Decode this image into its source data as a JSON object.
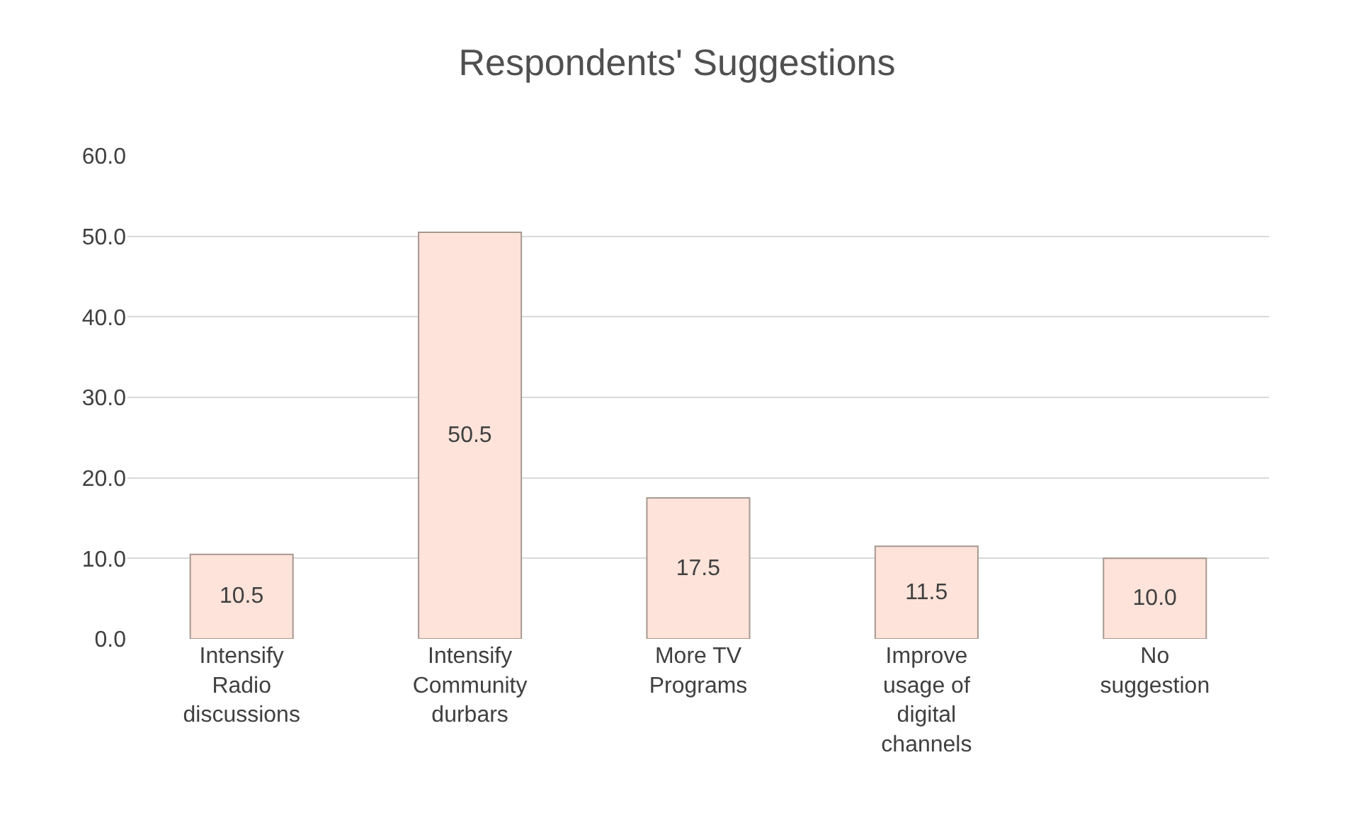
{
  "chart_data": {
    "type": "bar",
    "title": "Respondents' Suggestions",
    "categories": [
      "Intensify Radio discussions",
      "Intensify Community durbars",
      "More TV Programs",
      "Improve usage of digital channels",
      "No suggestion"
    ],
    "values": [
      10.5,
      50.5,
      17.5,
      11.5,
      10.0
    ],
    "value_labels": [
      "10.5",
      "50.5",
      "17.5",
      "11.5",
      "10.0"
    ],
    "color": "#fde3d9",
    "ylim": [
      0,
      60
    ],
    "yticks": [
      {
        "value": 0,
        "label": "0.0"
      },
      {
        "value": 10,
        "label": "10.0"
      },
      {
        "value": 20,
        "label": "20.0"
      },
      {
        "value": 30,
        "label": "30.0"
      },
      {
        "value": 40,
        "label": "40.0"
      },
      {
        "value": 50,
        "label": "50.0"
      },
      {
        "value": 60,
        "label": "60.0"
      }
    ],
    "grid": "y"
  }
}
